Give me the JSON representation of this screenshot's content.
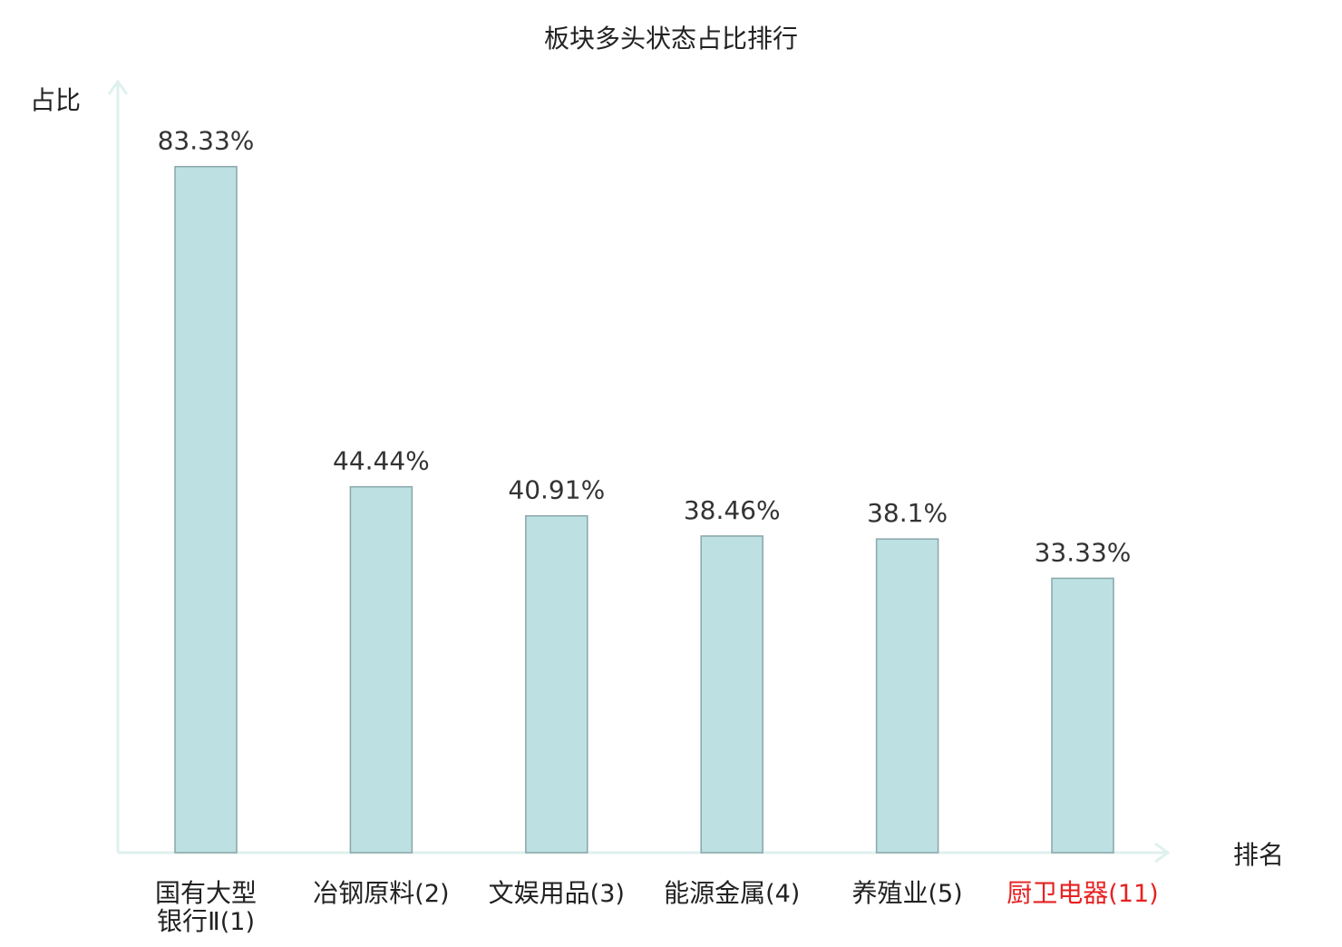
{
  "colors": {
    "bar_fill": "#bde0e2",
    "bar_stroke": "#8aa6a9",
    "axis": "#dff1ee",
    "text": "#333333",
    "label": "#222222",
    "highlight": "#e62222"
  },
  "chart_data": {
    "type": "bar",
    "title": "板块多头状态占比排行",
    "ylabel": "占比",
    "xlabel": "排名",
    "ylim": [
      0,
      92
    ],
    "categories": [
      {
        "name_lines": [
          "国有大型",
          "银行Ⅱ"
        ],
        "rank": "(1)",
        "highlight": false
      },
      {
        "name_lines": [
          "冶钢原料"
        ],
        "rank": "(2)",
        "highlight": false
      },
      {
        "name_lines": [
          "文娱用品"
        ],
        "rank": "(3)",
        "highlight": false
      },
      {
        "name_lines": [
          "能源金属"
        ],
        "rank": "(4)",
        "highlight": false
      },
      {
        "name_lines": [
          "养殖业"
        ],
        "rank": "(5)",
        "highlight": false
      },
      {
        "name_lines": [
          "厨卫电器"
        ],
        "rank": "(11)",
        "highlight": true
      }
    ],
    "values": [
      83.33,
      44.44,
      40.91,
      38.46,
      38.1,
      33.33
    ],
    "value_labels": [
      "83.33%",
      "44.44%",
      "40.91%",
      "38.46%",
      "38.1%",
      "33.33%"
    ],
    "grid": false,
    "legend": "none"
  }
}
